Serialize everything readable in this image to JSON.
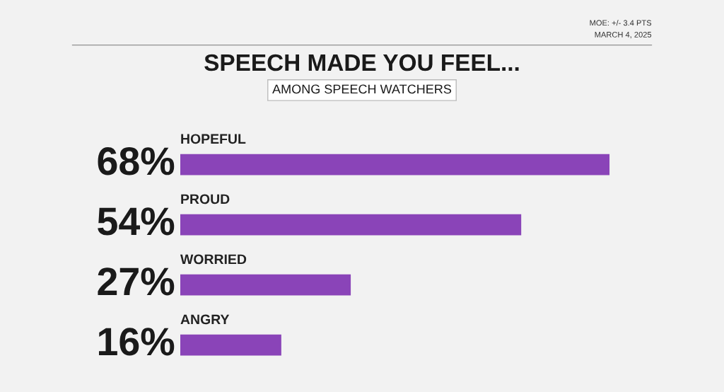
{
  "chart_data": {
    "type": "bar",
    "orientation": "horizontal",
    "title": "SPEECH MADE YOU FEEL...",
    "subtitle": "AMONG SPEECH WATCHERS",
    "categories": [
      "HOPEFUL",
      "PROUD",
      "WORRIED",
      "ANGRY"
    ],
    "values": [
      68,
      54,
      27,
      16
    ],
    "value_labels": [
      "68%",
      "54%",
      "27%",
      "16%"
    ],
    "color": "#8a44b8",
    "tick_labels": false,
    "annotations": [
      "MOE: +/- 3.4 PTS",
      "MARCH 4, 2025"
    ]
  }
}
